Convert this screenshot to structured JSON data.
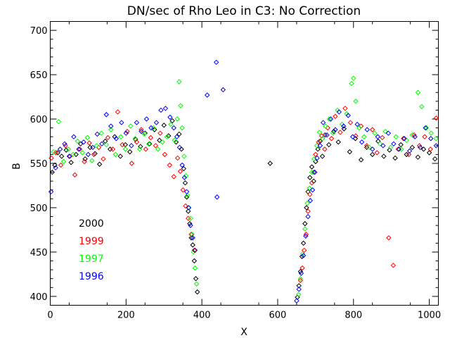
{
  "chart_data": {
    "type": "scatter",
    "title": "DN/sec of Rho Leo in C3: No Correction",
    "xlabel": "X",
    "ylabel": "B",
    "xlim": [
      0,
      1024
    ],
    "ylim": [
      390,
      710
    ],
    "x_ticks": [
      0,
      200,
      400,
      600,
      800,
      1000
    ],
    "y_ticks": [
      400,
      450,
      500,
      550,
      600,
      650,
      700
    ],
    "grid": false,
    "marker": "diamond-outline",
    "legend_position": "lower-left",
    "series": [
      {
        "name": "2000",
        "color": "#000000",
        "points": [
          [
            5,
            540
          ],
          [
            12,
            548
          ],
          [
            20,
            562
          ],
          [
            30,
            558
          ],
          [
            42,
            565
          ],
          [
            55,
            551
          ],
          [
            68,
            560
          ],
          [
            80,
            572
          ],
          [
            92,
            555
          ],
          [
            105,
            568
          ],
          [
            118,
            561
          ],
          [
            130,
            549
          ],
          [
            145,
            575
          ],
          [
            158,
            566
          ],
          [
            170,
            580
          ],
          [
            185,
            558
          ],
          [
            198,
            571
          ],
          [
            210,
            563
          ],
          [
            225,
            577
          ],
          [
            238,
            569
          ],
          [
            250,
            584
          ],
          [
            262,
            572
          ],
          [
            275,
            588
          ],
          [
            288,
            576
          ],
          [
            300,
            593
          ],
          [
            312,
            581
          ],
          [
            322,
            598
          ],
          [
            332,
            574
          ],
          [
            340,
            583
          ],
          [
            346,
            566
          ],
          [
            352,
            544
          ],
          [
            356,
            528
          ],
          [
            360,
            512
          ],
          [
            364,
            496
          ],
          [
            368,
            482
          ],
          [
            372,
            466
          ],
          [
            376,
            458
          ],
          [
            380,
            440
          ],
          [
            384,
            420
          ],
          [
            388,
            405
          ],
          [
            580,
            550
          ],
          [
            652,
            399
          ],
          [
            656,
            412
          ],
          [
            660,
            428
          ],
          [
            664,
            445
          ],
          [
            668,
            460
          ],
          [
            672,
            482
          ],
          [
            676,
            500
          ],
          [
            680,
            518
          ],
          [
            685,
            534
          ],
          [
            690,
            546
          ],
          [
            695,
            530
          ],
          [
            700,
            552
          ],
          [
            706,
            566
          ],
          [
            712,
            575
          ],
          [
            718,
            558
          ],
          [
            725,
            582
          ],
          [
            735,
            571
          ],
          [
            748,
            586
          ],
          [
            760,
            574
          ],
          [
            775,
            589
          ],
          [
            790,
            563
          ],
          [
            805,
            578
          ],
          [
            820,
            554
          ],
          [
            835,
            568
          ],
          [
            850,
            560
          ],
          [
            865,
            575
          ],
          [
            880,
            558
          ],
          [
            895,
            565
          ],
          [
            910,
            556
          ],
          [
            925,
            571
          ],
          [
            940,
            560
          ],
          [
            955,
            568
          ],
          [
            970,
            557
          ],
          [
            985,
            566
          ],
          [
            1000,
            562
          ],
          [
            1015,
            555
          ]
        ]
      },
      {
        "name": "1999",
        "color": "#ff0000",
        "points": [
          [
            3,
            556
          ],
          [
            15,
            562
          ],
          [
            28,
            548
          ],
          [
            40,
            570
          ],
          [
            52,
            558
          ],
          [
            65,
            537
          ],
          [
            78,
            566
          ],
          [
            90,
            552
          ],
          [
            103,
            573
          ],
          [
            115,
            560
          ],
          [
            128,
            568
          ],
          [
            140,
            555
          ],
          [
            152,
            579
          ],
          [
            165,
            566
          ],
          [
            178,
            608
          ],
          [
            190,
            571
          ],
          [
            203,
            586
          ],
          [
            215,
            550
          ],
          [
            228,
            574
          ],
          [
            240,
            588
          ],
          [
            252,
            566
          ],
          [
            265,
            579
          ],
          [
            278,
            570
          ],
          [
            290,
            584
          ],
          [
            302,
            560
          ],
          [
            315,
            548
          ],
          [
            326,
            535
          ],
          [
            336,
            556
          ],
          [
            343,
            541
          ],
          [
            350,
            520
          ],
          [
            357,
            502
          ],
          [
            364,
            488
          ],
          [
            372,
            470
          ],
          [
            380,
            452
          ],
          [
            660,
            418
          ],
          [
            665,
            432
          ],
          [
            670,
            452
          ],
          [
            675,
            470
          ],
          [
            680,
            496
          ],
          [
            685,
            515
          ],
          [
            690,
            528
          ],
          [
            695,
            540
          ],
          [
            700,
            560
          ],
          [
            708,
            574
          ],
          [
            716,
            581
          ],
          [
            724,
            566
          ],
          [
            732,
            590
          ],
          [
            742,
            578
          ],
          [
            752,
            603
          ],
          [
            765,
            585
          ],
          [
            778,
            612
          ],
          [
            792,
            596
          ],
          [
            806,
            581
          ],
          [
            820,
            592
          ],
          [
            835,
            570
          ],
          [
            850,
            588
          ],
          [
            862,
            562
          ],
          [
            876,
            579
          ],
          [
            893,
            466
          ],
          [
            905,
            435
          ],
          [
            918,
            566
          ],
          [
            932,
            578
          ],
          [
            946,
            560
          ],
          [
            960,
            582
          ],
          [
            974,
            570
          ],
          [
            988,
            580
          ],
          [
            1003,
            566
          ],
          [
            1018,
            601
          ]
        ]
      },
      {
        "name": "1997",
        "color": "#00ff00",
        "points": [
          [
            8,
            563
          ],
          [
            22,
            597
          ],
          [
            35,
            552
          ],
          [
            48,
            566
          ],
          [
            60,
            560
          ],
          [
            72,
            575
          ],
          [
            85,
            562
          ],
          [
            98,
            579
          ],
          [
            110,
            553
          ],
          [
            122,
            570
          ],
          [
            135,
            584
          ],
          [
            148,
            571
          ],
          [
            160,
            588
          ],
          [
            172,
            560
          ],
          [
            186,
            580
          ],
          [
            198,
            566
          ],
          [
            212,
            592
          ],
          [
            224,
            578
          ],
          [
            236,
            566
          ],
          [
            248,
            583
          ],
          [
            260,
            572
          ],
          [
            272,
            590
          ],
          [
            284,
            566
          ],
          [
            296,
            574
          ],
          [
            308,
            580
          ],
          [
            318,
            594
          ],
          [
            328,
            576
          ],
          [
            335,
            600
          ],
          [
            340,
            642
          ],
          [
            344,
            615
          ],
          [
            348,
            590
          ],
          [
            353,
            558
          ],
          [
            358,
            536
          ],
          [
            362,
            514
          ],
          [
            366,
            500
          ],
          [
            370,
            488
          ],
          [
            374,
            470
          ],
          [
            378,
            450
          ],
          [
            382,
            432
          ],
          [
            386,
            414
          ],
          [
            655,
            402
          ],
          [
            660,
            420
          ],
          [
            666,
            448
          ],
          [
            672,
            476
          ],
          [
            678,
            505
          ],
          [
            684,
            522
          ],
          [
            690,
            540
          ],
          [
            696,
            555
          ],
          [
            703,
            570
          ],
          [
            710,
            585
          ],
          [
            718,
            578
          ],
          [
            726,
            592
          ],
          [
            736,
            600
          ],
          [
            746,
            584
          ],
          [
            758,
            610
          ],
          [
            770,
            594
          ],
          [
            782,
            606
          ],
          [
            795,
            640
          ],
          [
            800,
            646
          ],
          [
            806,
            620
          ],
          [
            815,
            590
          ],
          [
            828,
            580
          ],
          [
            842,
            568
          ],
          [
            856,
            584
          ],
          [
            870,
            572
          ],
          [
            884,
            586
          ],
          [
            898,
            568
          ],
          [
            912,
            580
          ],
          [
            926,
            566
          ],
          [
            940,
            576
          ],
          [
            955,
            582
          ],
          [
            970,
            630
          ],
          [
            980,
            614
          ],
          [
            992,
            590
          ],
          [
            1005,
            584
          ],
          [
            1018,
            578
          ]
        ]
      },
      {
        "name": "1996",
        "color": "#0000ff",
        "points": [
          [
            2,
            518
          ],
          [
            14,
            545
          ],
          [
            26,
            566
          ],
          [
            38,
            572
          ],
          [
            50,
            558
          ],
          [
            62,
            580
          ],
          [
            75,
            566
          ],
          [
            88,
            574
          ],
          [
            100,
            560
          ],
          [
            112,
            568
          ],
          [
            124,
            583
          ],
          [
            136,
            572
          ],
          [
            148,
            605
          ],
          [
            160,
            592
          ],
          [
            174,
            578
          ],
          [
            188,
            596
          ],
          [
            200,
            584
          ],
          [
            214,
            570
          ],
          [
            228,
            596
          ],
          [
            240,
            586
          ],
          [
            254,
            600
          ],
          [
            266,
            590
          ],
          [
            280,
            596
          ],
          [
            292,
            610
          ],
          [
            304,
            612
          ],
          [
            316,
            602
          ],
          [
            326,
            590
          ],
          [
            334,
            580
          ],
          [
            341,
            568
          ],
          [
            348,
            548
          ],
          [
            354,
            534
          ],
          [
            360,
            518
          ],
          [
            365,
            500
          ],
          [
            370,
            480
          ],
          [
            376,
            466
          ],
          [
            382,
            452
          ],
          [
            414,
            627
          ],
          [
            438,
            664
          ],
          [
            440,
            512
          ],
          [
            456,
            633
          ],
          [
            650,
            395
          ],
          [
            656,
            408
          ],
          [
            662,
            426
          ],
          [
            668,
            446
          ],
          [
            674,
            468
          ],
          [
            680,
            490
          ],
          [
            686,
            508
          ],
          [
            692,
            520
          ],
          [
            698,
            540
          ],
          [
            704,
            556
          ],
          [
            712,
            570
          ],
          [
            720,
            596
          ],
          [
            730,
            582
          ],
          [
            740,
            600
          ],
          [
            752,
            588
          ],
          [
            762,
            608
          ],
          [
            774,
            592
          ],
          [
            786,
            604
          ],
          [
            798,
            580
          ],
          [
            810,
            594
          ],
          [
            822,
            574
          ],
          [
            836,
            588
          ],
          [
            850,
            566
          ],
          [
            864,
            580
          ],
          [
            878,
            570
          ],
          [
            892,
            584
          ],
          [
            906,
            572
          ],
          [
            920,
            566
          ],
          [
            934,
            578
          ],
          [
            948,
            564
          ],
          [
            962,
            580
          ],
          [
            976,
            568
          ],
          [
            990,
            590
          ],
          [
            1004,
            578
          ],
          [
            1018,
            570
          ]
        ]
      }
    ]
  }
}
